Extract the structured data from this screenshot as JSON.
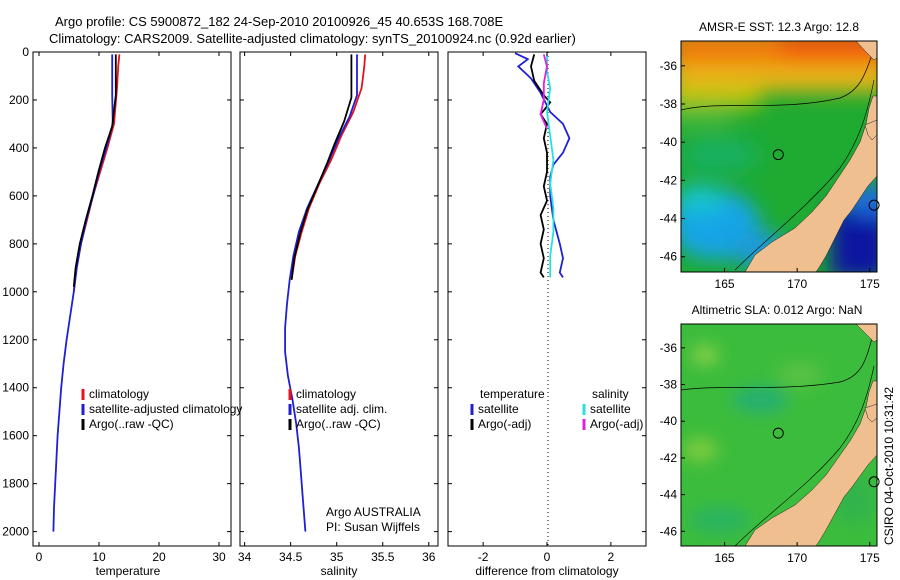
{
  "header": {
    "line1": "Argo profile: CS 5900872_182 24-Sep-2010 20100926_45 40.653S 168.708E",
    "line2": "Climatology: CARS2009. Satellite-adjusted climatology: synTS_20100924.nc (0.92d earlier)"
  },
  "side_stamp": "CSIRO 04-Oct-2010 10:31:42",
  "colors": {
    "red": "#e8121b",
    "blue": "#1f1fd6",
    "black": "#000000",
    "cyan": "#26e0e0",
    "magenta": "#e020e0",
    "land": "#f0bf90"
  },
  "chart_data": [
    {
      "type": "line",
      "xlabel": "temperature",
      "xlim": [
        -1,
        32
      ],
      "ylim": [
        2060,
        0
      ],
      "xticks": [
        "0",
        "10",
        "20",
        "30"
      ],
      "yticks": [
        "0",
        "200",
        "400",
        "600",
        "800",
        "1000",
        "1200",
        "1400",
        "1600",
        "1800",
        "2000"
      ],
      "legend": [
        "climatology",
        "satellite-adjusted climatology",
        "Argo(..raw -QC)"
      ],
      "series": [
        {
          "name": "climatology",
          "color": "red",
          "points": [
            [
              13.4,
              10
            ],
            [
              13.2,
              60
            ],
            [
              13.0,
              150
            ],
            [
              12.5,
              300
            ],
            [
              11.4,
              400
            ],
            [
              10.2,
              500
            ],
            [
              9.0,
              600
            ],
            [
              8.0,
              700
            ],
            [
              7.0,
              800
            ],
            [
              6.2,
              900
            ],
            [
              5.8,
              1000
            ]
          ]
        },
        {
          "name": "satellite-adjusted climatology",
          "color": "blue",
          "points": [
            [
              12.2,
              10
            ],
            [
              12.2,
              60
            ],
            [
              12.2,
              180
            ],
            [
              12.3,
              300
            ],
            [
              11.2,
              400
            ],
            [
              10.0,
              500
            ],
            [
              9.0,
              600
            ],
            [
              7.9,
              700
            ],
            [
              7.0,
              800
            ],
            [
              6.3,
              900
            ],
            [
              5.8,
              1000
            ],
            [
              5.2,
              1100
            ],
            [
              4.6,
              1200
            ],
            [
              4.1,
              1300
            ],
            [
              3.7,
              1400
            ],
            [
              3.4,
              1500
            ],
            [
              3.1,
              1600
            ],
            [
              2.9,
              1700
            ],
            [
              2.7,
              1800
            ],
            [
              2.5,
              1900
            ],
            [
              2.4,
              2000
            ]
          ]
        },
        {
          "name": "Argo(..raw -QC)",
          "color": "black",
          "points": [
            [
              12.8,
              10
            ],
            [
              12.8,
              80
            ],
            [
              12.8,
              180
            ],
            [
              12.2,
              310
            ],
            [
              11.0,
              400
            ],
            [
              9.9,
              500
            ],
            [
              8.9,
              600
            ],
            [
              7.8,
              700
            ],
            [
              6.8,
              800
            ],
            [
              6.1,
              900
            ],
            [
              5.8,
              980
            ]
          ]
        }
      ]
    },
    {
      "type": "line",
      "xlabel": "salinity",
      "xlim": [
        33.95,
        36.1
      ],
      "ylim": [
        2060,
        0
      ],
      "xticks": [
        "34",
        "34.5",
        "35",
        "35.5",
        "36"
      ],
      "yticks": [],
      "legend": [
        "climatology",
        "satellite adj. clim.",
        "Argo(..raw -QC)"
      ],
      "series": [
        {
          "name": "climatology",
          "color": "red",
          "points": [
            [
              35.31,
              10
            ],
            [
              35.3,
              60
            ],
            [
              35.27,
              150
            ],
            [
              35.18,
              250
            ],
            [
              35.05,
              350
            ],
            [
              34.94,
              450
            ],
            [
              34.81,
              550
            ],
            [
              34.7,
              650
            ],
            [
              34.62,
              750
            ],
            [
              34.55,
              850
            ],
            [
              34.51,
              950
            ]
          ]
        },
        {
          "name": "satellite adj. clim.",
          "color": "blue",
          "points": [
            [
              35.22,
              10
            ],
            [
              35.22,
              60
            ],
            [
              35.22,
              180
            ],
            [
              35.14,
              270
            ],
            [
              35.02,
              360
            ],
            [
              34.92,
              450
            ],
            [
              34.8,
              550
            ],
            [
              34.68,
              650
            ],
            [
              34.59,
              750
            ],
            [
              34.53,
              850
            ],
            [
              34.49,
              950
            ],
            [
              34.46,
              1050
            ],
            [
              34.44,
              1150
            ],
            [
              34.44,
              1250
            ],
            [
              34.47,
              1350
            ],
            [
              34.52,
              1450
            ],
            [
              34.56,
              1550
            ],
            [
              34.59,
              1650
            ],
            [
              34.61,
              1750
            ],
            [
              34.63,
              1850
            ],
            [
              34.66,
              2000
            ]
          ]
        },
        {
          "name": "Argo(..raw -QC)",
          "color": "black",
          "points": [
            [
              35.16,
              10
            ],
            [
              35.16,
              80
            ],
            [
              35.16,
              190
            ],
            [
              35.08,
              290
            ],
            [
              34.98,
              380
            ],
            [
              34.9,
              460
            ],
            [
              34.79,
              560
            ],
            [
              34.68,
              660
            ],
            [
              34.6,
              760
            ],
            [
              34.54,
              860
            ],
            [
              34.51,
              950
            ]
          ]
        }
      ],
      "annotation": [
        "Argo AUSTRALIA",
        "PI: Susan Wijffels"
      ]
    },
    {
      "type": "line",
      "xlabel": "difference from climatology",
      "xlim": [
        -3.1,
        3.1
      ],
      "ylim": [
        2060,
        0
      ],
      "xticks": [
        "-2",
        "0",
        "2"
      ],
      "yticks": [],
      "legend_groups": [
        {
          "title": "temperature",
          "items": [
            {
              "name": "satellite",
              "color": "blue"
            },
            {
              "name": "Argo(-adj)",
              "color": "black"
            }
          ]
        },
        {
          "title": "salinity",
          "items": [
            {
              "name": "satellite",
              "color": "cyan"
            },
            {
              "name": "Argo(-adj)",
              "color": "magenta"
            }
          ]
        }
      ],
      "series": [
        {
          "name": "temperature satellite",
          "color": "blue",
          "points": [
            [
              -1.0,
              5
            ],
            [
              -0.6,
              30
            ],
            [
              -0.9,
              60
            ],
            [
              -0.5,
              110
            ],
            [
              -0.2,
              170
            ],
            [
              0.1,
              250
            ],
            [
              0.5,
              300
            ],
            [
              0.7,
              360
            ],
            [
              0.5,
              420
            ],
            [
              0.2,
              470
            ],
            [
              0.1,
              520
            ],
            [
              0.1,
              600
            ],
            [
              0.2,
              700
            ],
            [
              0.4,
              800
            ],
            [
              0.5,
              860
            ],
            [
              0.4,
              920
            ],
            [
              0.5,
              940
            ]
          ]
        },
        {
          "name": "temperature Argo(-adj)",
          "color": "black",
          "points": [
            [
              -0.4,
              10
            ],
            [
              -0.5,
              60
            ],
            [
              -0.4,
              120
            ],
            [
              -0.1,
              180
            ],
            [
              0.1,
              210
            ],
            [
              -0.2,
              260
            ],
            [
              0.0,
              300
            ],
            [
              -0.1,
              360
            ],
            [
              0.0,
              420
            ],
            [
              0.0,
              500
            ],
            [
              -0.1,
              560
            ],
            [
              0.0,
              620
            ],
            [
              -0.2,
              680
            ],
            [
              -0.1,
              740
            ],
            [
              -0.2,
              800
            ],
            [
              -0.1,
              860
            ],
            [
              -0.2,
              920
            ],
            [
              -0.1,
              940
            ]
          ]
        },
        {
          "name": "salinity satellite",
          "color": "cyan",
          "points": [
            [
              0.0,
              10
            ],
            [
              0.0,
              80
            ],
            [
              0.1,
              150
            ],
            [
              0.0,
              250
            ],
            [
              0.1,
              350
            ],
            [
              0.2,
              450
            ],
            [
              0.1,
              550
            ],
            [
              0.2,
              650
            ],
            [
              0.2,
              750
            ],
            [
              0.1,
              850
            ],
            [
              0.1,
              940
            ]
          ]
        },
        {
          "name": "salinity Argo(-adj)",
          "color": "magenta",
          "points": [
            [
              -0.1,
              10
            ],
            [
              0.0,
              60
            ],
            [
              -0.1,
              130
            ],
            [
              -0.1,
              200
            ],
            [
              -0.2,
              260
            ],
            [
              0.0,
              320
            ]
          ]
        }
      ]
    },
    {
      "type": "heatmap",
      "title": "AMSR-E SST: 12.3 Argo: 12.8",
      "xlim": [
        162,
        175.5
      ],
      "ylim": [
        -46.8,
        -34.7
      ],
      "xticks": [
        "165",
        "170",
        "175"
      ],
      "yticks": [
        "-36",
        "-38",
        "-40",
        "-42",
        "-44",
        "-46"
      ],
      "marker": [
        168.7,
        -40.65
      ],
      "marker2": [
        175.3,
        -43.3
      ]
    },
    {
      "type": "heatmap",
      "title": "Altimetric SLA: 0.012 Argo: NaN",
      "xlim": [
        162,
        175.5
      ],
      "ylim": [
        -46.8,
        -34.7
      ],
      "xticks": [
        "165",
        "170",
        "175"
      ],
      "yticks": [
        "-36",
        "-38",
        "-40",
        "-42",
        "-44",
        "-46"
      ],
      "marker": [
        168.7,
        -40.65
      ],
      "marker2": [
        175.3,
        -43.3
      ]
    }
  ]
}
